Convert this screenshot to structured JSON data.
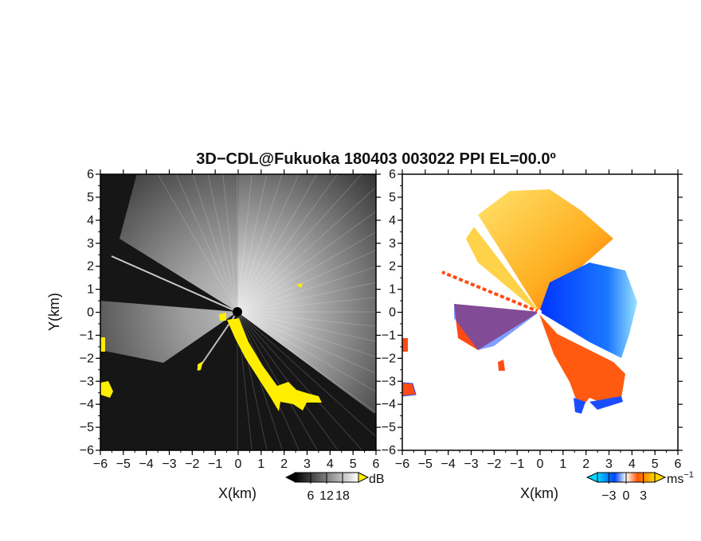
{
  "chart_data": [
    {
      "type": "heatmap",
      "panel": "reflectivity",
      "title": "3D−CDL@Fukuoka 180403 003022 PPI EL=00.0º",
      "xlabel": "X(km)",
      "ylabel": "Y(km)",
      "xlim": [
        -6,
        6
      ],
      "ylim": [
        -6,
        6
      ],
      "xticks": [
        "−6",
        "−5",
        "−4",
        "−3",
        "−2",
        "−1",
        "0",
        "1",
        "2",
        "3",
        "4",
        "5",
        "6"
      ],
      "yticks": [
        "−6",
        "−5",
        "−4",
        "−3",
        "−2",
        "−1",
        "0",
        "1",
        "2",
        "3",
        "4",
        "5",
        "6"
      ],
      "colorbar": {
        "unit": "dB",
        "ticks": [
          "6",
          "12",
          "18"
        ],
        "range": [
          0,
          24
        ]
      },
      "colors": {
        "background": "#161616",
        "high": "#ffffff",
        "flag": "#ffee00"
      }
    },
    {
      "type": "heatmap",
      "panel": "doppler_velocity",
      "xlabel": "X(km)",
      "xlim": [
        -6,
        6
      ],
      "ylim": [
        -6,
        6
      ],
      "xticks": [
        "−6",
        "−5",
        "−4",
        "−3",
        "−2",
        "−1",
        "0",
        "1",
        "2",
        "3",
        "4",
        "5",
        "6"
      ],
      "yticks": [
        "−6",
        "−5",
        "−4",
        "−3",
        "−2",
        "−1",
        "0",
        "1",
        "2",
        "3",
        "4",
        "5",
        "6"
      ],
      "colorbar": {
        "unit": "ms",
        "unit_exp": "−1",
        "ticks": [
          "−3",
          "0",
          "3"
        ],
        "range": [
          -5,
          5
        ]
      },
      "colors": {
        "negative": "#0044ff",
        "near_zero": "#ffffff",
        "positive": "#ff5500",
        "extreme_neg": "#00d8ff",
        "extreme_pos": "#ffd700"
      }
    }
  ]
}
